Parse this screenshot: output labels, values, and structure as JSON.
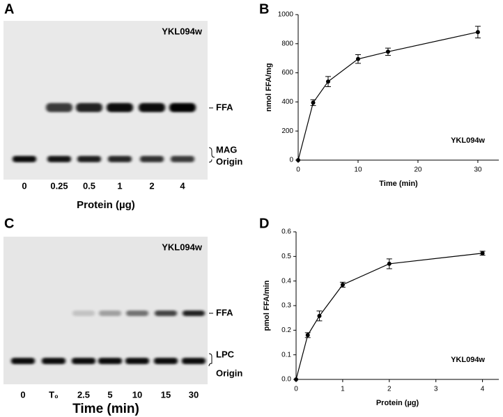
{
  "panel_labels": [
    "A",
    "B",
    "C",
    "D"
  ],
  "gel_a": {
    "title": "YKL094w",
    "band_labels": [
      "FFA",
      "MAG",
      "Origin"
    ],
    "lanes": [
      "0",
      "0.25",
      "0.5",
      "1",
      "2",
      "4"
    ],
    "xlabel": "Protein (µg)"
  },
  "gel_c": {
    "title": "YKL094w",
    "band_labels": [
      "FFA",
      "LPC",
      "Origin"
    ],
    "lanes": [
      "0",
      "T₀",
      "2.5",
      "5",
      "10",
      "15",
      "30"
    ],
    "xlabel": "Time (min)"
  },
  "chart_data": [
    {
      "type": "line",
      "annotation": "YKL094w",
      "xlabel": "Time (min)",
      "ylabel": "nmol FFA/mg",
      "color": "#000000",
      "x": [
        0,
        2.5,
        5,
        10,
        15,
        30
      ],
      "values": [
        0,
        395,
        540,
        695,
        745,
        880
      ],
      "errors": [
        0,
        20,
        35,
        30,
        25,
        40
      ],
      "xlim": [
        0,
        33.5
      ],
      "xticks": [
        0,
        10,
        20,
        30
      ],
      "ylim": [
        0,
        1000
      ],
      "yticks": [
        0,
        200,
        400,
        600,
        800,
        1000
      ]
    },
    {
      "type": "line",
      "annotation": "YKL094w",
      "xlabel": "Protein (µg)",
      "ylabel": "pmol FFA/min",
      "color": "#000000",
      "x": [
        0,
        0.25,
        0.5,
        1,
        2,
        4
      ],
      "values": [
        0,
        0.18,
        0.258,
        0.385,
        0.47,
        0.513
      ],
      "errors": [
        0,
        0.01,
        0.02,
        0.01,
        0.02,
        0.008
      ],
      "xlim": [
        0,
        4.35
      ],
      "xticks": [
        0,
        1,
        2,
        3,
        4
      ],
      "ylim": [
        0,
        0.6
      ],
      "yticks": [
        {
          "value": 0,
          "label": "0.0"
        },
        0.1,
        0.2,
        0.3,
        0.4,
        0.5,
        0.6
      ]
    }
  ]
}
